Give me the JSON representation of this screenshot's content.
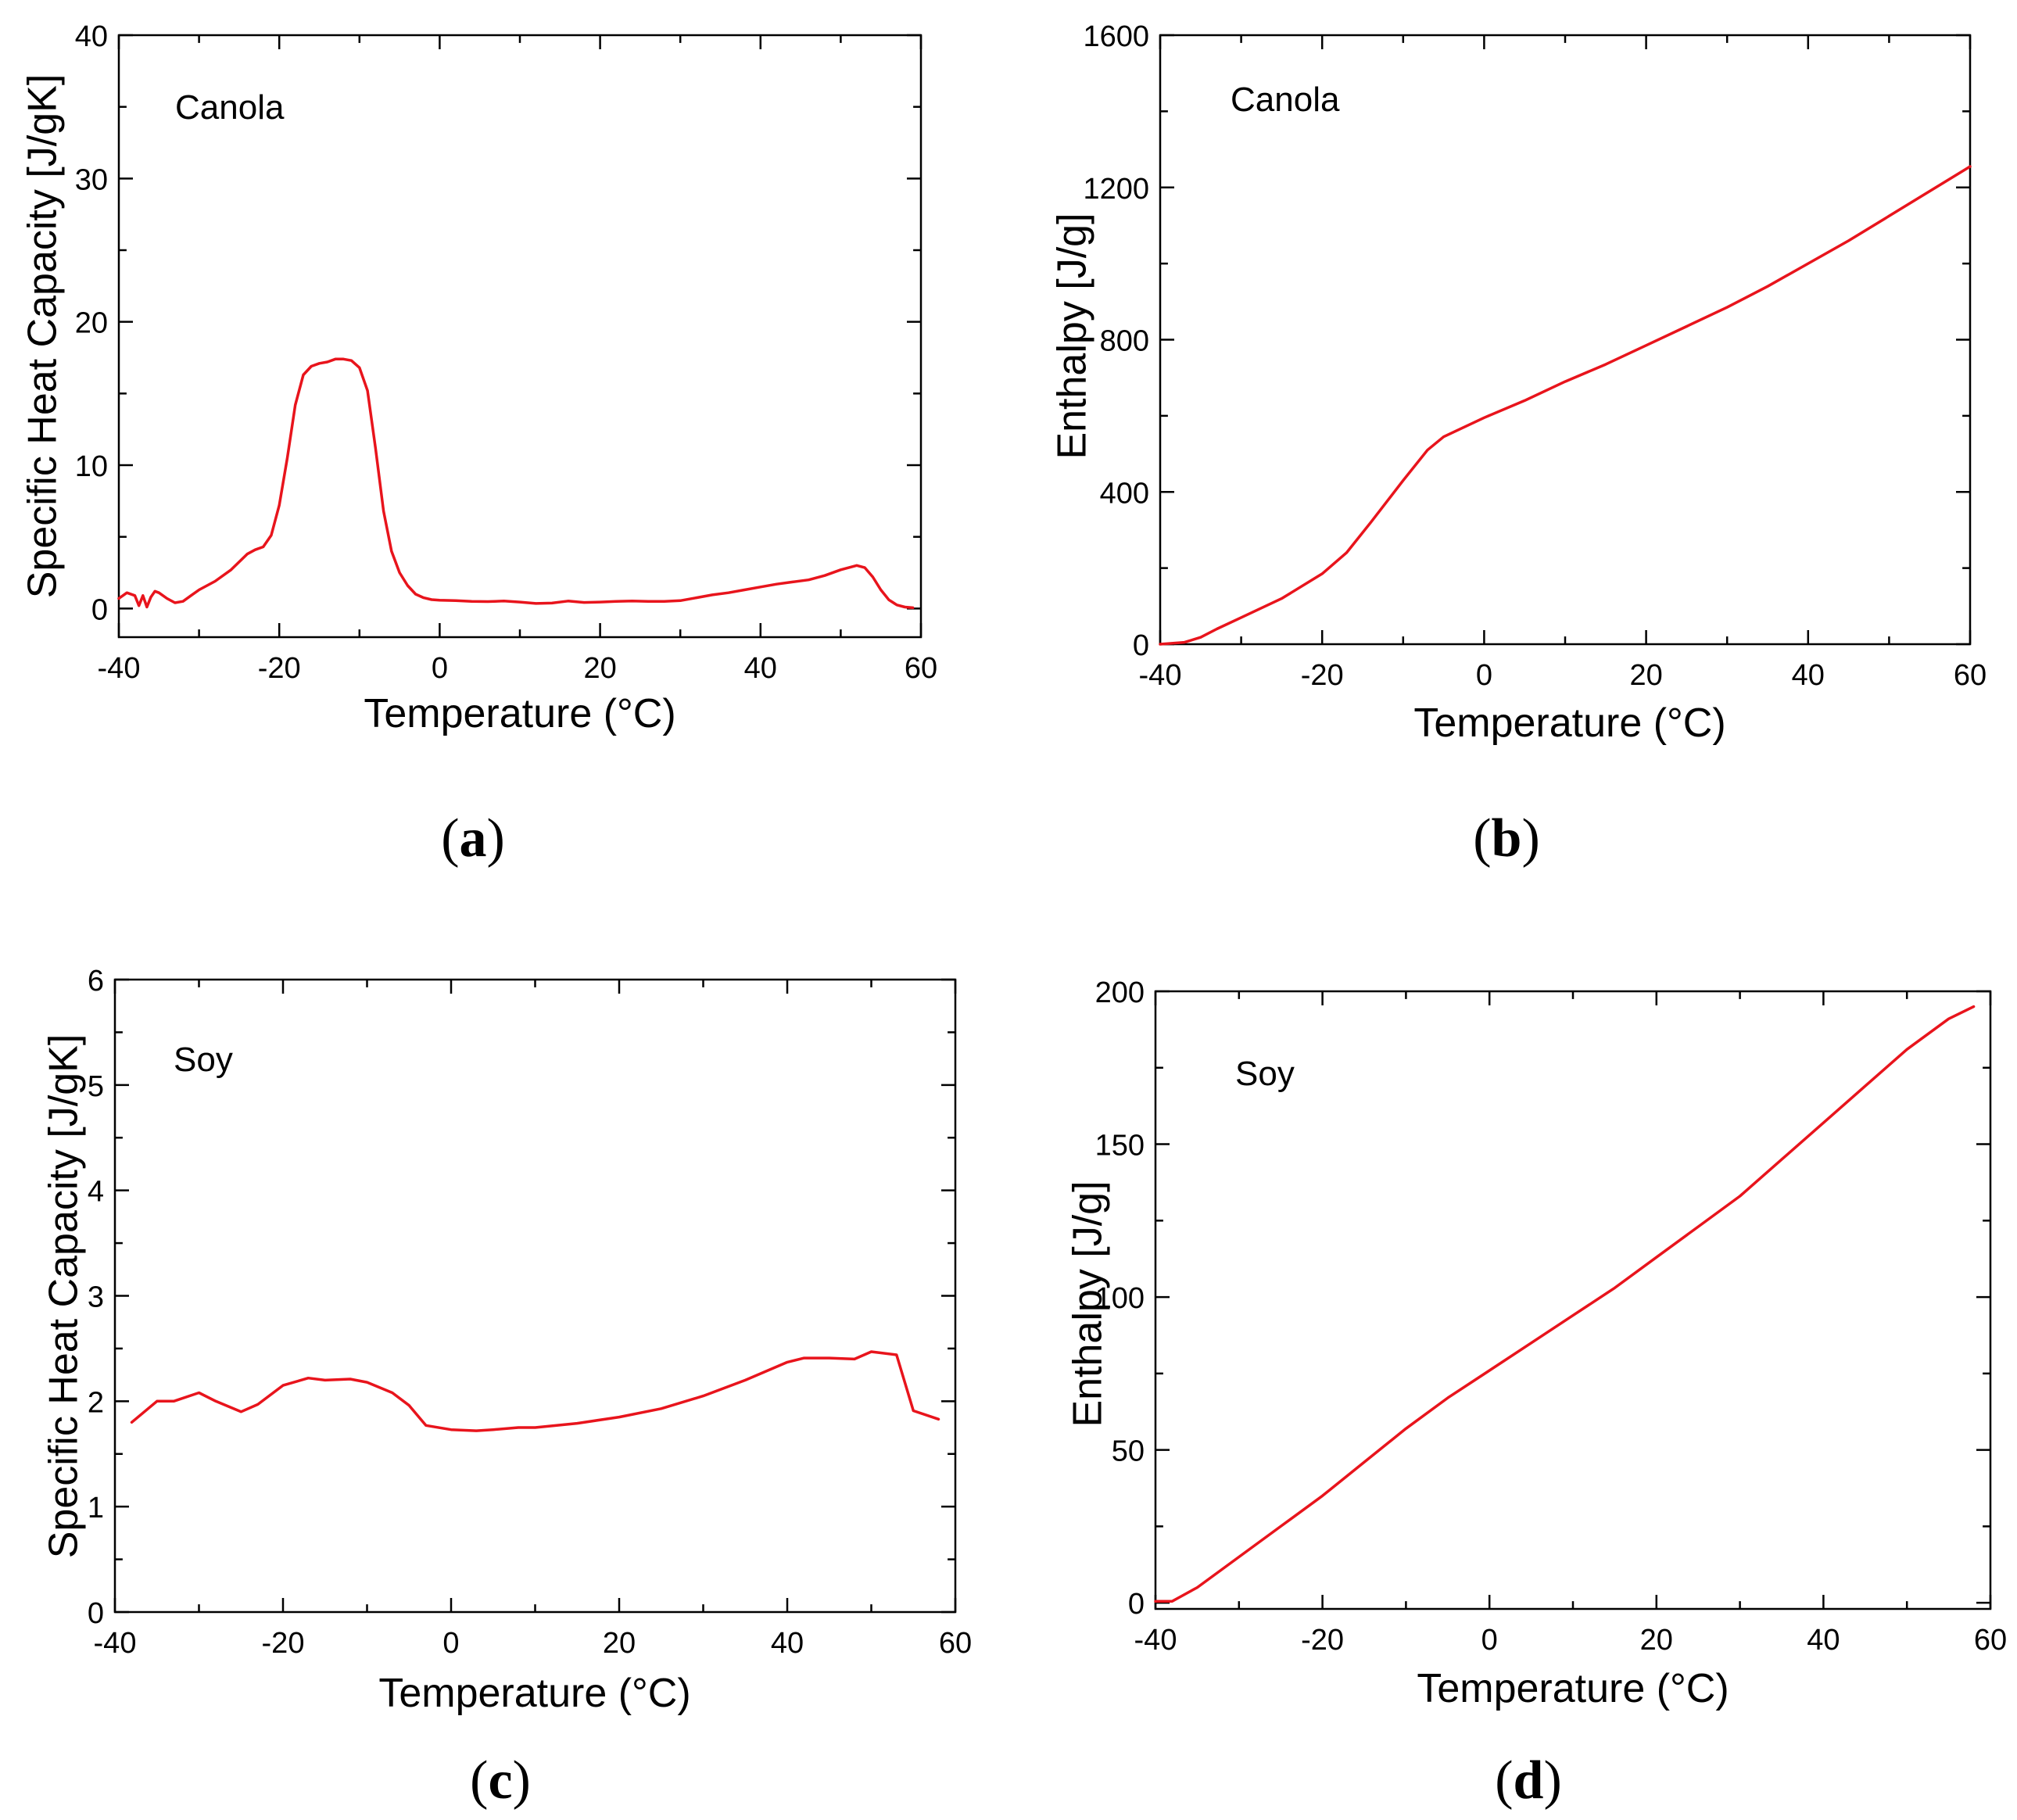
{
  "chart_data": [
    {
      "id": "a",
      "type": "line",
      "panel_label": {
        "open": "(",
        "letter": "a",
        "close": ")"
      },
      "annotation": "Canola",
      "xlabel": "Temperature (°C)",
      "ylabel": "Specific Heat Capacity [J/gK]",
      "xlim": [
        -40,
        60
      ],
      "ylim": [
        -2,
        40
      ],
      "xticks": [
        -40,
        -20,
        0,
        20,
        40,
        60
      ],
      "yticks": [
        0,
        10,
        20,
        30,
        40
      ],
      "grid": false,
      "color": "#e8141c",
      "x": [
        -40,
        -39,
        -38,
        -37.5,
        -37,
        -36.5,
        -36,
        -35.5,
        -35,
        -34,
        -33,
        -32,
        -31,
        -30,
        -28,
        -26,
        -24,
        -23,
        -22,
        -21,
        -20,
        -19,
        -18,
        -17,
        -16,
        -15,
        -14,
        -13,
        -12,
        -11,
        -10,
        -9,
        -8,
        -7,
        -6,
        -5,
        -4,
        -3,
        -2,
        -1,
        0,
        2,
        4,
        6,
        8,
        10,
        12,
        14,
        16,
        18,
        20,
        22,
        24,
        26,
        28,
        30,
        32,
        34,
        36,
        38,
        40,
        42,
        44,
        46,
        48,
        50,
        52,
        53,
        54,
        55,
        56,
        57,
        58,
        59
      ],
      "values": [
        0.7,
        1.1,
        0.9,
        0.2,
        0.9,
        0.1,
        0.8,
        1.2,
        1.1,
        0.7,
        0.4,
        0.5,
        0.9,
        1.3,
        1.9,
        2.7,
        3.8,
        4.1,
        4.3,
        5.1,
        7.2,
        10.5,
        14.2,
        16.3,
        16.9,
        17.1,
        17.2,
        17.4,
        17.4,
        17.3,
        16.8,
        15.2,
        11.2,
        6.8,
        4.0,
        2.5,
        1.6,
        1.0,
        0.75,
        0.62,
        0.58,
        0.55,
        0.5,
        0.48,
        0.52,
        0.45,
        0.35,
        0.38,
        0.52,
        0.42,
        0.45,
        0.5,
        0.52,
        0.5,
        0.5,
        0.55,
        0.75,
        0.95,
        1.1,
        1.3,
        1.5,
        1.7,
        1.85,
        2.0,
        2.3,
        2.7,
        3.0,
        2.85,
        2.2,
        1.3,
        0.6,
        0.25,
        0.1,
        0.05
      ]
    },
    {
      "id": "b",
      "type": "line",
      "panel_label": {
        "open": "(",
        "letter": "b",
        "close": ")"
      },
      "annotation": "Canola",
      "xlabel": "Temperature (°C)",
      "ylabel": "Enthalpy [J/g]",
      "xlim": [
        -40,
        60
      ],
      "ylim": [
        0,
        1600
      ],
      "xticks": [
        -40,
        -20,
        0,
        20,
        40,
        60
      ],
      "yticks": [
        0,
        400,
        800,
        1200,
        1600
      ],
      "grid": false,
      "color": "#e8141c",
      "x": [
        -40,
        -37,
        -35,
        -33,
        -30,
        -25,
        -20,
        -17,
        -14,
        -10,
        -7,
        -5,
        -3,
        0,
        5,
        10,
        15,
        20,
        25,
        30,
        35,
        40,
        45,
        50,
        55,
        60
      ],
      "values": [
        0,
        5,
        18,
        40,
        70,
        120,
        185,
        240,
        320,
        430,
        510,
        545,
        565,
        595,
        640,
        690,
        735,
        785,
        835,
        885,
        940,
        1000,
        1060,
        1125,
        1190,
        1255
      ]
    },
    {
      "id": "c",
      "type": "line",
      "panel_label": {
        "open": "(",
        "letter": "c",
        "close": ")"
      },
      "annotation": "Soy",
      "xlabel": "Temperature (°C)",
      "ylabel": "Specific Heat Capacity [J/gK]",
      "xlim": [
        -40,
        60
      ],
      "ylim": [
        0,
        6
      ],
      "xticks": [
        -40,
        -20,
        0,
        20,
        40,
        60
      ],
      "yticks": [
        0,
        1,
        2,
        3,
        4,
        5,
        6
      ],
      "grid": false,
      "color": "#e8141c",
      "x": [
        -38,
        -35,
        -33,
        -30,
        -28,
        -25,
        -23,
        -20,
        -17,
        -15,
        -12,
        -10,
        -7,
        -5,
        -3,
        0,
        3,
        5,
        8,
        10,
        15,
        20,
        25,
        30,
        35,
        40,
        42,
        45,
        48,
        50,
        53,
        55,
        58
      ],
      "values": [
        1.8,
        2.0,
        2.0,
        2.08,
        2.0,
        1.9,
        1.97,
        2.15,
        2.22,
        2.2,
        2.21,
        2.18,
        2.08,
        1.96,
        1.77,
        1.73,
        1.72,
        1.73,
        1.75,
        1.75,
        1.79,
        1.85,
        1.93,
        2.05,
        2.2,
        2.37,
        2.41,
        2.41,
        2.4,
        2.47,
        2.44,
        1.91,
        1.83
      ]
    },
    {
      "id": "d",
      "type": "line",
      "panel_label": {
        "open": "(",
        "letter": "d",
        "close": ")"
      },
      "annotation": "Soy",
      "xlabel": "Temperature (°C)",
      "ylabel": "Enthalpy [J/g]",
      "xlim": [
        -40,
        60
      ],
      "ylim": [
        -2,
        200
      ],
      "xticks": [
        -40,
        -20,
        0,
        20,
        40,
        60
      ],
      "yticks": [
        0,
        50,
        100,
        150,
        200
      ],
      "grid": false,
      "color": "#e8141c",
      "x": [
        -40,
        -38,
        -37,
        -35,
        -30,
        -25,
        -20,
        -15,
        -10,
        -5,
        0,
        5,
        10,
        15,
        20,
        25,
        30,
        35,
        40,
        45,
        50,
        55,
        58
      ],
      "values": [
        0.5,
        0.5,
        2,
        5,
        15,
        25,
        35,
        46,
        57,
        67,
        76,
        85,
        94,
        103,
        113,
        123,
        133,
        145,
        157,
        169,
        181,
        191,
        195
      ]
    }
  ]
}
